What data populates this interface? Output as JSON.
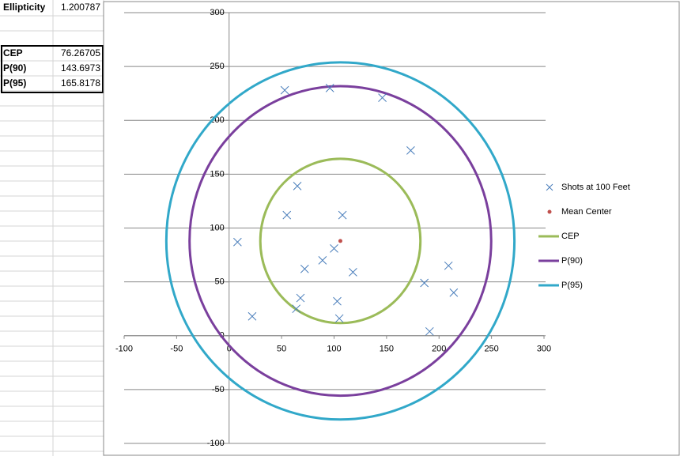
{
  "cells": {
    "ellipticity": {
      "label": "Ellipticity",
      "value": 1.200787
    },
    "rows": [
      [
        "CEP",
        76.26705
      ],
      [
        "P(90)",
        143.6973
      ],
      [
        "P(95)",
        165.8178
      ]
    ]
  },
  "chart_data": {
    "type": "scatter",
    "xlim": [
      -100,
      300
    ],
    "ylim": [
      -100,
      300
    ],
    "xticks": [
      -100,
      -50,
      0,
      50,
      100,
      150,
      200,
      250,
      300
    ],
    "yticks": [
      -100,
      -50,
      0,
      50,
      100,
      150,
      200,
      250,
      300
    ],
    "grid": true,
    "legend": "right",
    "series": [
      {
        "name": "Shots at 100 Feet",
        "color": "#4a7ebb",
        "marker": "x",
        "x": [
          53,
          96,
          146,
          173,
          65,
          55,
          108,
          8,
          89,
          100,
          72,
          118,
          68,
          64,
          103,
          105,
          22,
          186,
          209,
          214,
          191
        ],
        "y": [
          228,
          230,
          221,
          172,
          139,
          112,
          112,
          87,
          70,
          81,
          62,
          59,
          35,
          25,
          32,
          16,
          18,
          49,
          65,
          40,
          4
        ]
      },
      {
        "name": "Mean Center",
        "color": "#c0504d",
        "marker": "dot",
        "x": [
          106
        ],
        "y": [
          88
        ]
      },
      {
        "name": "CEP",
        "color": "#9bbb59",
        "marker": "circle",
        "radius": 76.26705
      },
      {
        "name": "P(90)",
        "color": "#7a3f9d",
        "marker": "circle",
        "radius": 143.6973
      },
      {
        "name": "P(95)",
        "color": "#31a8c9",
        "marker": "circle",
        "radius": 165.8178
      }
    ]
  }
}
